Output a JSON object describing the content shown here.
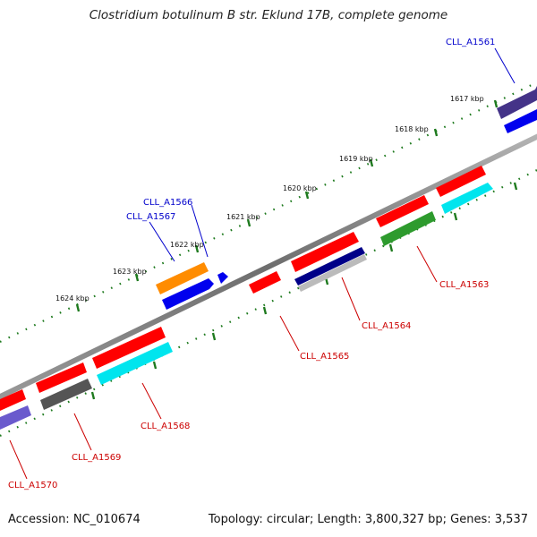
{
  "title": "Clostridium botulinum B str. Eklund 17B, complete genome",
  "footer": {
    "accession": "Accession: NC_010674",
    "summary": "Topology: circular; Length: 3,800,327 bp; Genes: 3,537"
  },
  "colors": {
    "backbone": "#8a8a8a",
    "tick_marks": "#1e7a1e",
    "label_forward": "#0000cc",
    "label_reverse": "#cc0000",
    "leader_forward": "#0000cc",
    "leader_reverse": "#cc0000"
  },
  "scale_labels": [
    {
      "text": "1617 kbp",
      "value_kbp": 1617
    },
    {
      "text": "1618 kbp",
      "value_kbp": 1618
    },
    {
      "text": "1619 kbp",
      "value_kbp": 1619
    },
    {
      "text": "1620 kbp",
      "value_kbp": 1620
    },
    {
      "text": "1621 kbp",
      "value_kbp": 1621
    },
    {
      "text": "1622 kbp",
      "value_kbp": 1622
    },
    {
      "text": "1623 kbp",
      "value_kbp": 1623
    },
    {
      "text": "1624 kbp",
      "value_kbp": 1624
    }
  ],
  "gene_labels": [
    {
      "name": "CLL_A1561",
      "strand": "forward"
    },
    {
      "name": "CLL_A1566",
      "strand": "forward"
    },
    {
      "name": "CLL_A1567",
      "strand": "forward"
    },
    {
      "name": "CLL_A1563",
      "strand": "reverse"
    },
    {
      "name": "CLL_A1564",
      "strand": "reverse"
    },
    {
      "name": "CLL_A1565",
      "strand": "reverse"
    },
    {
      "name": "CLL_A1568",
      "strand": "reverse"
    },
    {
      "name": "CLL_A1569",
      "strand": "reverse"
    },
    {
      "name": "CLL_A1570",
      "strand": "reverse"
    }
  ]
}
